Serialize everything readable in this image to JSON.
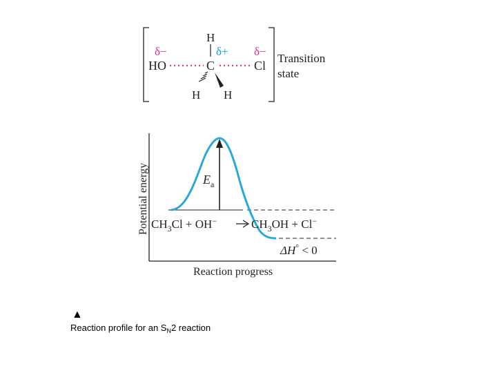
{
  "colors": {
    "curve": "#29a9d9",
    "magenta": "#e0338f",
    "ink": "#231f20",
    "cyan": "#1aa0d4"
  },
  "transition_state": {
    "delta_minus_left": "δ−",
    "delta_plus": "δ+",
    "delta_minus_right": "δ−",
    "atom_top_h": "H",
    "atom_ho": "HO",
    "atom_c": "C",
    "atom_cl": "Cl",
    "atom_h_bottom_left": "H",
    "atom_h_bottom_right": "H",
    "label_line1": "Transition",
    "label_line2": "state"
  },
  "energy_diagram": {
    "y_axis_label": "Potential energy",
    "x_axis_label": "Reaction progress",
    "ea_symbol": "E",
    "ea_subscript": "a",
    "reactants": {
      "a": "CH",
      "a_sub": "3",
      "b": "Cl + OH",
      "b_sup": "−"
    },
    "products": {
      "a": "CH",
      "a_sub": "3",
      "b": "OH + Cl",
      "b_sup": "−"
    },
    "delta_h": {
      "prefix": "ΔH",
      "sup": "°",
      "suffix": " < 0"
    }
  },
  "caption": {
    "marker": "▲",
    "text_before": "Reaction profile for an S",
    "subscript": "N",
    "text_after": "2 reaction"
  }
}
